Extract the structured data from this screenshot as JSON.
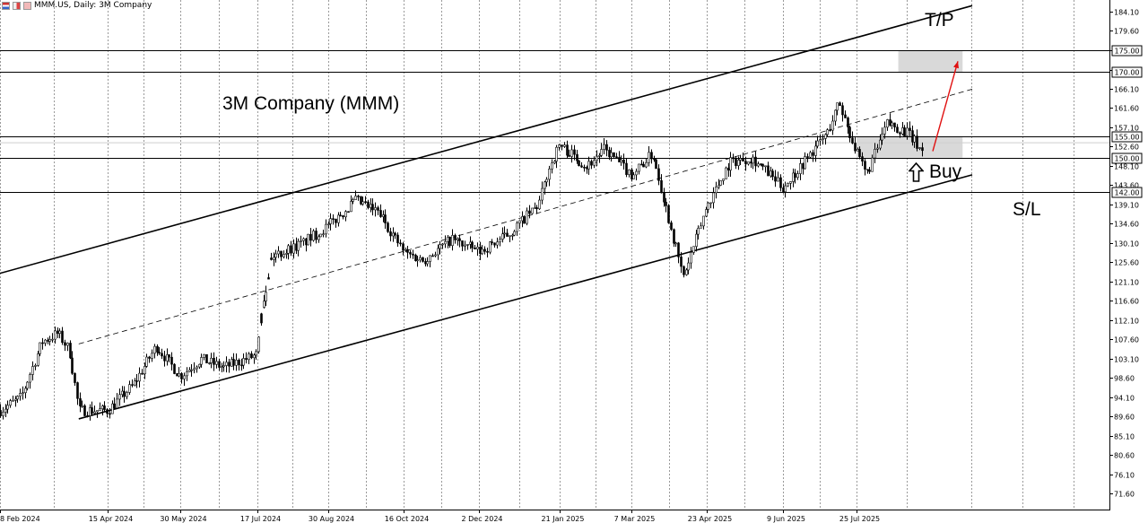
{
  "header": {
    "symbol": "MMM.US, Daily:  3M Company"
  },
  "annotations": {
    "title": "3M Company (MMM)",
    "tp": "T/P",
    "sl": "S/L",
    "buy": "Buy"
  },
  "chart_data": {
    "type": "candlestick",
    "title": "3M Company (MMM)",
    "ylabel": "",
    "xlabel": "",
    "y_range": [
      67.2,
      186.5
    ],
    "price_ticks": [
      184.1,
      179.6,
      175.0,
      170.5,
      166.1,
      161.6,
      157.1,
      152.6,
      148.1,
      143.6,
      139.1,
      134.6,
      130.1,
      125.6,
      121.1,
      116.6,
      112.1,
      107.6,
      103.1,
      98.6,
      94.1,
      89.6,
      85.1,
      80.6,
      76.1,
      71.6
    ],
    "date_ticks": [
      "8 Feb 2024",
      "15 Apr 2024",
      "30 May 2024",
      "17 Jul 2024",
      "30 Aug 2024",
      "16 Oct 2024",
      "2 Dec 2024",
      "21 Jan 2025",
      "7 Mar 2025",
      "23 Apr 2025",
      "9 Jun 2025",
      "25 Jul 2025"
    ],
    "horizontal_levels": [
      {
        "price": 175.0,
        "label": "175.00",
        "role": "take-profit upper"
      },
      {
        "price": 170.0,
        "label": "170.00",
        "role": "take-profit lower"
      },
      {
        "price": 155.0,
        "label": "155.00",
        "role": "buy zone upper"
      },
      {
        "price": 150.0,
        "label": "150.00",
        "role": "buy zone lower"
      },
      {
        "price": 142.0,
        "label": "142.00",
        "role": "stop-loss"
      }
    ],
    "price_path": [
      [
        "8 Feb 2024",
        91
      ],
      [
        "21 Feb 2024",
        94
      ],
      [
        "5 Mar 2024",
        107
      ],
      [
        "15 Mar 2024",
        109
      ],
      [
        "22 Mar 2024",
        105
      ],
      [
        "28 Mar 2024",
        91
      ],
      [
        "15 Apr 2024",
        91
      ],
      [
        "1 May 2024",
        97
      ],
      [
        "15 May 2024",
        106
      ],
      [
        "30 May 2024",
        99
      ],
      [
        "12 Jun 2024",
        103
      ],
      [
        "26 Jun 2024",
        101
      ],
      [
        "17 Jul 2024",
        104
      ],
      [
        "19 Jul 2024",
        112
      ],
      [
        "26 Jul 2024",
        127
      ],
      [
        "14 Aug 2024",
        130
      ],
      [
        "30 Aug 2024",
        134
      ],
      [
        "16 Sep 2024",
        140
      ],
      [
        "1 Oct 2024",
        137
      ],
      [
        "16 Oct 2024",
        128
      ],
      [
        "28 Oct 2024",
        126
      ],
      [
        "15 Nov 2024",
        131
      ],
      [
        "2 Dec 2024",
        128
      ],
      [
        "20 Dec 2024",
        132
      ],
      [
        "8 Jan 2025",
        139
      ],
      [
        "14 Jan 2025",
        147
      ],
      [
        "21 Jan 2025",
        153
      ],
      [
        "7 Feb 2025",
        148
      ],
      [
        "18 Feb 2025",
        152
      ],
      [
        "7 Mar 2025",
        146
      ],
      [
        "20 Mar 2025",
        151
      ],
      [
        "8 Apr 2025",
        122
      ],
      [
        "23 Apr 2025",
        139
      ],
      [
        "7 May 2025",
        149
      ],
      [
        "21 May 2025",
        150
      ],
      [
        "9 Jun 2025",
        143
      ],
      [
        "20 Jun 2025",
        148
      ],
      [
        "7 Jul 2025",
        156
      ],
      [
        "14 Jul 2025",
        163
      ],
      [
        "25 Jul 2025",
        151
      ],
      [
        "31 Jul 2025",
        146
      ],
      [
        "13 Aug 2025",
        158
      ],
      [
        "25 Aug 2025",
        156
      ],
      [
        "5 Sep 2025",
        151
      ]
    ],
    "channel": {
      "upper": [
        [
          "8 Feb 2024",
          123.0
        ],
        [
          "5 Oct 2025",
          185.5
        ]
      ],
      "lower": [
        [
          "28 Mar 2024",
          89.0
        ],
        [
          "5 Oct 2025",
          146.0
        ]
      ],
      "middle": [
        [
          "28 Mar 2024",
          106.5
        ],
        [
          "5 Oct 2025",
          166.0
        ]
      ]
    },
    "zones": [
      {
        "name": "take-profit",
        "from_date": "20 Aug 2025",
        "to_date": "29 Sep 2025",
        "price_low": 170.0,
        "price_high": 175.0
      },
      {
        "name": "buy",
        "from_date": "25 Jul 2025",
        "to_date": "29 Sep 2025",
        "price_low": 150.0,
        "price_high": 155.0
      }
    ],
    "colors": {
      "candles": "#000000",
      "arrow": "#e01010",
      "zone": "#d9d9d9",
      "grid": "#9a9a9a"
    },
    "grid": true
  }
}
